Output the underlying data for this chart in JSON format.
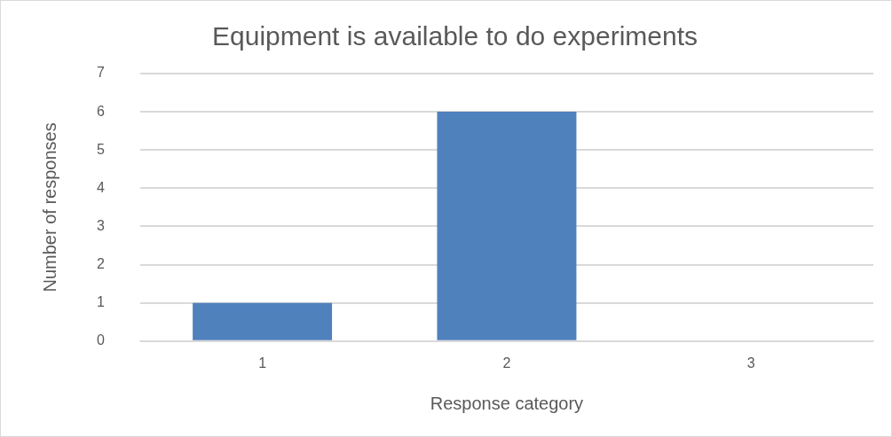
{
  "chart_data": {
    "type": "bar",
    "title": "Equipment is available to do experiments",
    "xlabel": "Response category",
    "ylabel": "Number of responses",
    "categories": [
      "1",
      "2",
      "3"
    ],
    "values": [
      1,
      6,
      0
    ],
    "color": "#4f81bd",
    "ylim": [
      0,
      7
    ],
    "yticks": [
      0,
      1,
      2,
      3,
      4,
      5,
      6,
      7
    ],
    "grid": "y",
    "legend": false
  }
}
